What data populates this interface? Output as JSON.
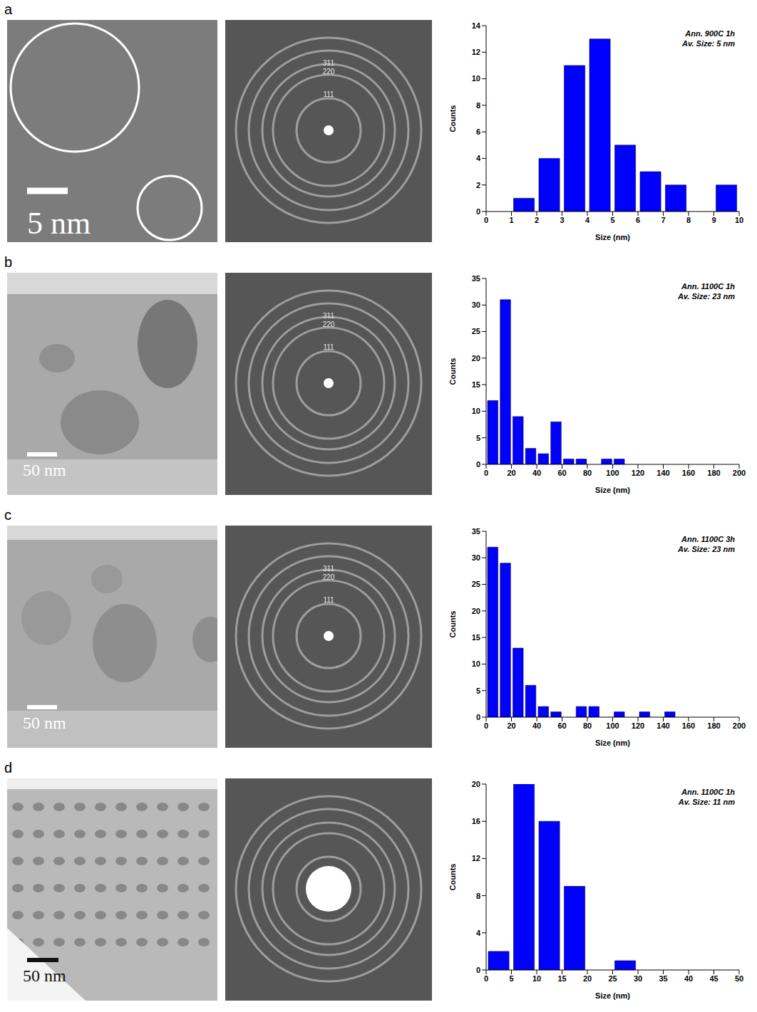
{
  "chart_data": [
    {
      "type": "histogram",
      "title": "Ann. 900C 1h",
      "subtitle": "Av. Size: 5 nm",
      "x_label": "Size (nm)",
      "y_label": "Counts",
      "bins": [
        1,
        2,
        3,
        4,
        5,
        6,
        7,
        8,
        9,
        10
      ],
      "values": [
        1,
        4,
        11,
        13,
        5,
        3,
        2,
        0,
        2
      ],
      "color": "#0000ff",
      "xlim": [
        0,
        10
      ],
      "xticks": [
        0,
        1,
        2,
        3,
        4,
        5,
        6,
        7,
        8,
        9,
        10
      ],
      "ylim": [
        0,
        14
      ],
      "yticks": [
        0,
        2,
        4,
        6,
        8,
        10,
        12,
        14
      ],
      "grid": false
    },
    {
      "type": "histogram",
      "title": "Ann. 1100C 1h",
      "subtitle": "Av. Size: 23 nm",
      "x_label": "Size (nm)",
      "y_label": "Counts",
      "bins": [
        0,
        10,
        20,
        30,
        40,
        50,
        60,
        70,
        80,
        90,
        100,
        110
      ],
      "values": [
        12,
        31,
        9,
        3,
        2,
        8,
        1,
        1,
        0,
        1,
        1
      ],
      "color": "#0000ff",
      "xlim": [
        0,
        200
      ],
      "xticks": [
        0,
        20,
        40,
        60,
        80,
        100,
        120,
        140,
        160,
        180,
        200
      ],
      "ylim": [
        0,
        35
      ],
      "yticks": [
        0,
        5,
        10,
        15,
        20,
        25,
        30,
        35
      ],
      "grid": false
    },
    {
      "type": "histogram",
      "title": "Ann. 1100C 3h",
      "subtitle": "Av. Size: 23 nm",
      "x_label": "Size (nm)",
      "y_label": "Counts",
      "bins": [
        0,
        10,
        20,
        30,
        40,
        50,
        60,
        70,
        80,
        90,
        100,
        110,
        120,
        130,
        140,
        150
      ],
      "values": [
        32,
        29,
        13,
        6,
        2,
        1,
        0,
        2,
        2,
        0,
        1,
        0,
        1,
        0,
        1
      ],
      "color": "#0000ff",
      "xlim": [
        0,
        200
      ],
      "xticks": [
        0,
        20,
        40,
        60,
        80,
        100,
        120,
        140,
        160,
        180,
        200
      ],
      "ylim": [
        0,
        35
      ],
      "yticks": [
        0,
        5,
        10,
        15,
        20,
        25,
        30,
        35
      ],
      "grid": false
    },
    {
      "type": "histogram",
      "title": "Ann. 1100C 1h",
      "subtitle": "Av. Size: 11 nm",
      "x_label": "Size (nm)",
      "y_label": "Counts",
      "bins": [
        0,
        5,
        10,
        15,
        20,
        25,
        30
      ],
      "values": [
        2,
        20,
        16,
        9,
        0,
        1
      ],
      "color": "#0000ff",
      "xlim": [
        0,
        50
      ],
      "xticks": [
        0,
        5,
        10,
        15,
        20,
        25,
        30,
        35,
        40,
        45,
        50
      ],
      "ylim": [
        0,
        20
      ],
      "yticks": [
        0,
        4,
        8,
        12,
        16,
        20
      ],
      "grid": false
    }
  ],
  "panels": [
    {
      "letter": "a",
      "scale_bar": "5 nm",
      "diffraction_labels": [
        "311",
        "220",
        "111"
      ]
    },
    {
      "letter": "b",
      "scale_bar": "50 nm",
      "diffraction_labels": [
        "311",
        "220",
        "111"
      ]
    },
    {
      "letter": "c",
      "scale_bar": "50 nm",
      "diffraction_labels": [
        "311",
        "220",
        "111"
      ]
    },
    {
      "letter": "d",
      "scale_bar": "50 nm"
    }
  ]
}
